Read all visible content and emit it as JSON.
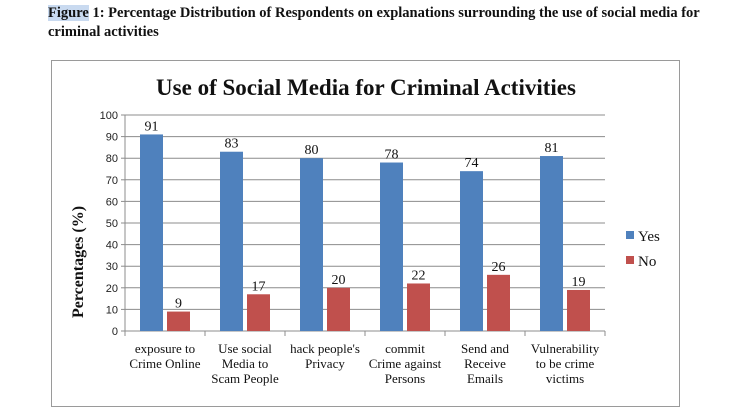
{
  "caption": {
    "label": "Figure",
    "text": " 1: Percentage Distribution of Respondents on explanations surrounding the use of social media for criminal activities"
  },
  "chart_data": {
    "type": "bar",
    "title": "Use of  Social Media for Criminal Activities",
    "xlabel": "",
    "ylabel": "Percentages (%)",
    "ylim": [
      0,
      100
    ],
    "yticks": [
      0,
      10,
      20,
      30,
      40,
      50,
      60,
      70,
      80,
      90,
      100
    ],
    "grid": true,
    "legend_position": "right",
    "categories": [
      [
        "exposure to",
        "Crime Online"
      ],
      [
        "Use social",
        "Media to",
        "Scam People"
      ],
      [
        "hack people's",
        "Privacy"
      ],
      [
        "commit",
        "Crime against",
        "Persons"
      ],
      [
        "Send and",
        "Receive",
        "Emails"
      ],
      [
        "Vulnerability",
        "to be crime",
        "victims"
      ]
    ],
    "series": [
      {
        "name": "Yes",
        "color": "#4f81bd",
        "values": [
          91,
          83,
          80,
          78,
          74,
          81
        ]
      },
      {
        "name": "No",
        "color": "#c0504d",
        "values": [
          9,
          17,
          20,
          22,
          26,
          19
        ]
      }
    ]
  }
}
